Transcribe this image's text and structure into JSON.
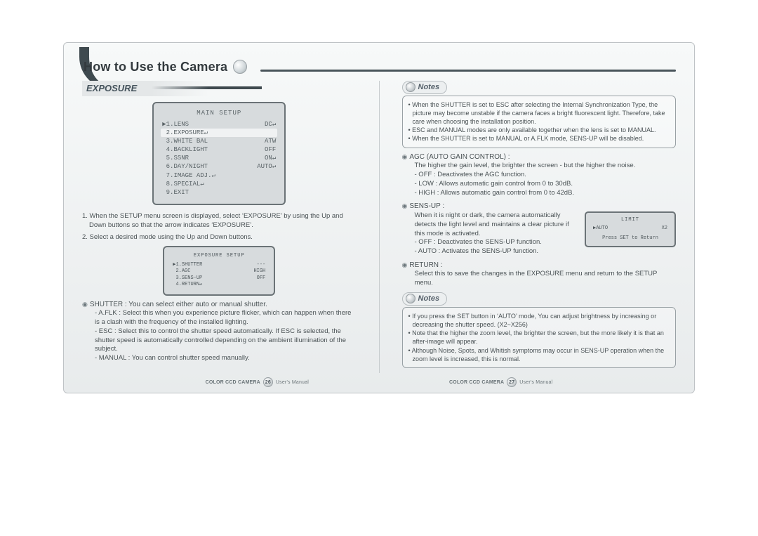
{
  "title": "How to Use the Camera",
  "left": {
    "section": "EXPOSURE",
    "osd_main": {
      "title": "MAIN SETUP",
      "rows": [
        {
          "arrow": "▶",
          "label": "1.LENS",
          "value": "DC↵",
          "selected": false
        },
        {
          "arrow": "",
          "label": "2.EXPOSURE↵",
          "value": "",
          "selected": true
        },
        {
          "arrow": "",
          "label": "3.WHITE BAL",
          "value": "ATW",
          "selected": false
        },
        {
          "arrow": "",
          "label": "4.BACKLIGHT",
          "value": "OFF",
          "selected": false
        },
        {
          "arrow": "",
          "label": "5.SSNR",
          "value": "ON↵",
          "selected": false
        },
        {
          "arrow": "",
          "label": "6.DAY/NIGHT",
          "value": "AUTO↵",
          "selected": false
        },
        {
          "arrow": "",
          "label": "7.IMAGE ADJ.↵",
          "value": "",
          "selected": false
        },
        {
          "arrow": "",
          "label": "8.SPECIAL↵",
          "value": "",
          "selected": false
        },
        {
          "arrow": "",
          "label": "9.EXIT",
          "value": "",
          "selected": false
        }
      ]
    },
    "step1": "1. When the SETUP menu screen is displayed, select ‘EXPOSURE’ by using the Up and Down buttons so that the arrow indicates ‘EXPOSURE’.",
    "step2": "2. Select a desired mode using the Up and Down buttons.",
    "osd_exposure": {
      "title": "EXPOSURE SETUP",
      "rows": [
        {
          "arrow": "▶",
          "label": "1.SHUTTER",
          "value": "---"
        },
        {
          "arrow": "",
          "label": "2.AGC",
          "value": "HIGH"
        },
        {
          "arrow": "",
          "label": "3.SENS-UP",
          "value": "OFF"
        },
        {
          "arrow": "",
          "label": "4.RETURN↵",
          "value": ""
        }
      ]
    },
    "shutter_head": "SHUTTER : You can select either auto or manual shutter.",
    "shutter_aflk": "- A.FLK : Select this when you experience picture flicker, which can happen when there is a clash with the frequency of the installed lighting.",
    "shutter_esc": "- ESC : Select this to control the shutter speed automatically. If ESC is selected, the shutter speed is automatically controlled depending on the ambient illumination of the subject.",
    "shutter_manual": "- MANUAL : You can control shutter speed manually."
  },
  "right": {
    "notes1": [
      "When the SHUTTER is set to ESC after selecting the Internal Synchronization Type, the picture may become unstable if the camera faces a bright fluorescent light. Therefore, take care when choosing the installation position.",
      "ESC and MANUAL modes are only available together when the lens is set to MANUAL.",
      "When the SHUTTER is set to MANUAL or A.FLK mode, SENS-UP will be disabled."
    ],
    "agc_head": "AGC (AUTO GAIN CONTROL) :",
    "agc_intro": "The higher the gain level, the brighter the screen - but the higher the noise.",
    "agc_off": "- OFF : Deactivates the AGC function.",
    "agc_low": "- LOW : Allows automatic gain control from 0 to 30dB.",
    "agc_high": "- HIGH : Allows automatic gain control from 0 to 42dB.",
    "sensup_head": "SENS-UP :",
    "sensup_intro": "When it is night or dark, the camera automatically detects the light level and maintains a clear picture if this mode is activated.",
    "sensup_off": "- OFF : Deactivates the SENS-UP function.",
    "sensup_auto": "- AUTO : Activates the SENS-UP function.",
    "osd_limit": {
      "title": "LIMIT",
      "row_label": "AUTO",
      "row_value": "X2",
      "foot": "Press SET to Return"
    },
    "return_head": "RETURN :",
    "return_text": "Select this to save the changes in the EXPOSURE menu and return to the SETUP menu.",
    "notes2": [
      "If you press the SET button in ‘AUTO’ mode, You can adjust brightness by increasing or decreasing the shutter speed. (X2~X256)",
      "Note that the higher the zoom level, the brighter the screen, but the more likely it is that an after-image will appear.",
      "Although Noise, Spots, and Whitish symptoms may occur in SENS-UP operation when the zoom level is increased, this is normal."
    ]
  },
  "footer": {
    "product": "COLOR CCD CAMERA",
    "label": "User's Manual",
    "page_left": "26",
    "page_right": "27"
  },
  "notes_label": "Notes"
}
